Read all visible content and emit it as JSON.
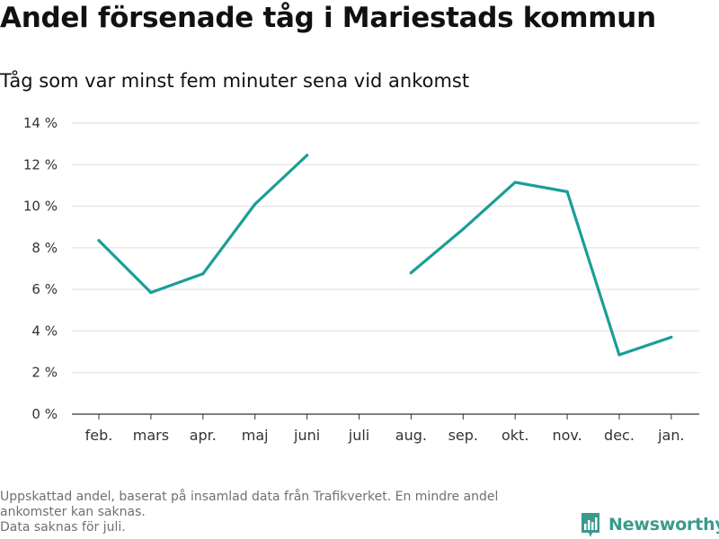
{
  "header": {
    "title": "Andel försenade tåg i Mariestads kommun",
    "subtitle": "Tåg som var minst fem minuter sena vid ankomst"
  },
  "footnote": {
    "line1": "Uppskattad andel, baserat på insamlad data från Trafikverket. En mindre andel ankomster kan saknas.",
    "line2": "Data saknas för juli."
  },
  "brand": {
    "name": "Newsworthy",
    "color": "#3a9a8e"
  },
  "colors": {
    "line": "#1a9e96",
    "grid": "#dddddd",
    "axis": "#333333"
  },
  "chart_data": {
    "type": "line",
    "title": "Andel försenade tåg i Mariestads kommun",
    "subtitle": "Tåg som var minst fem minuter sena vid ankomst",
    "xlabel": "",
    "ylabel": "",
    "categories": [
      "feb.",
      "mars",
      "apr.",
      "maj",
      "juni",
      "juli",
      "aug.",
      "sep.",
      "okt.",
      "nov.",
      "dec.",
      "jan."
    ],
    "series": [
      {
        "values": [
          8.35,
          5.85,
          6.75,
          10.1,
          12.45,
          null,
          6.8,
          8.9,
          11.15,
          10.7,
          2.85,
          3.7
        ]
      }
    ],
    "y_ticks": [
      0,
      2,
      4,
      6,
      8,
      10,
      12,
      14
    ],
    "y_tick_labels": [
      "0 %",
      "2 %",
      "4 %",
      "6 %",
      "8 %",
      "10 %",
      "12 %",
      "14 %"
    ],
    "ylim": [
      0,
      14
    ],
    "grid": true,
    "legend": "none"
  }
}
